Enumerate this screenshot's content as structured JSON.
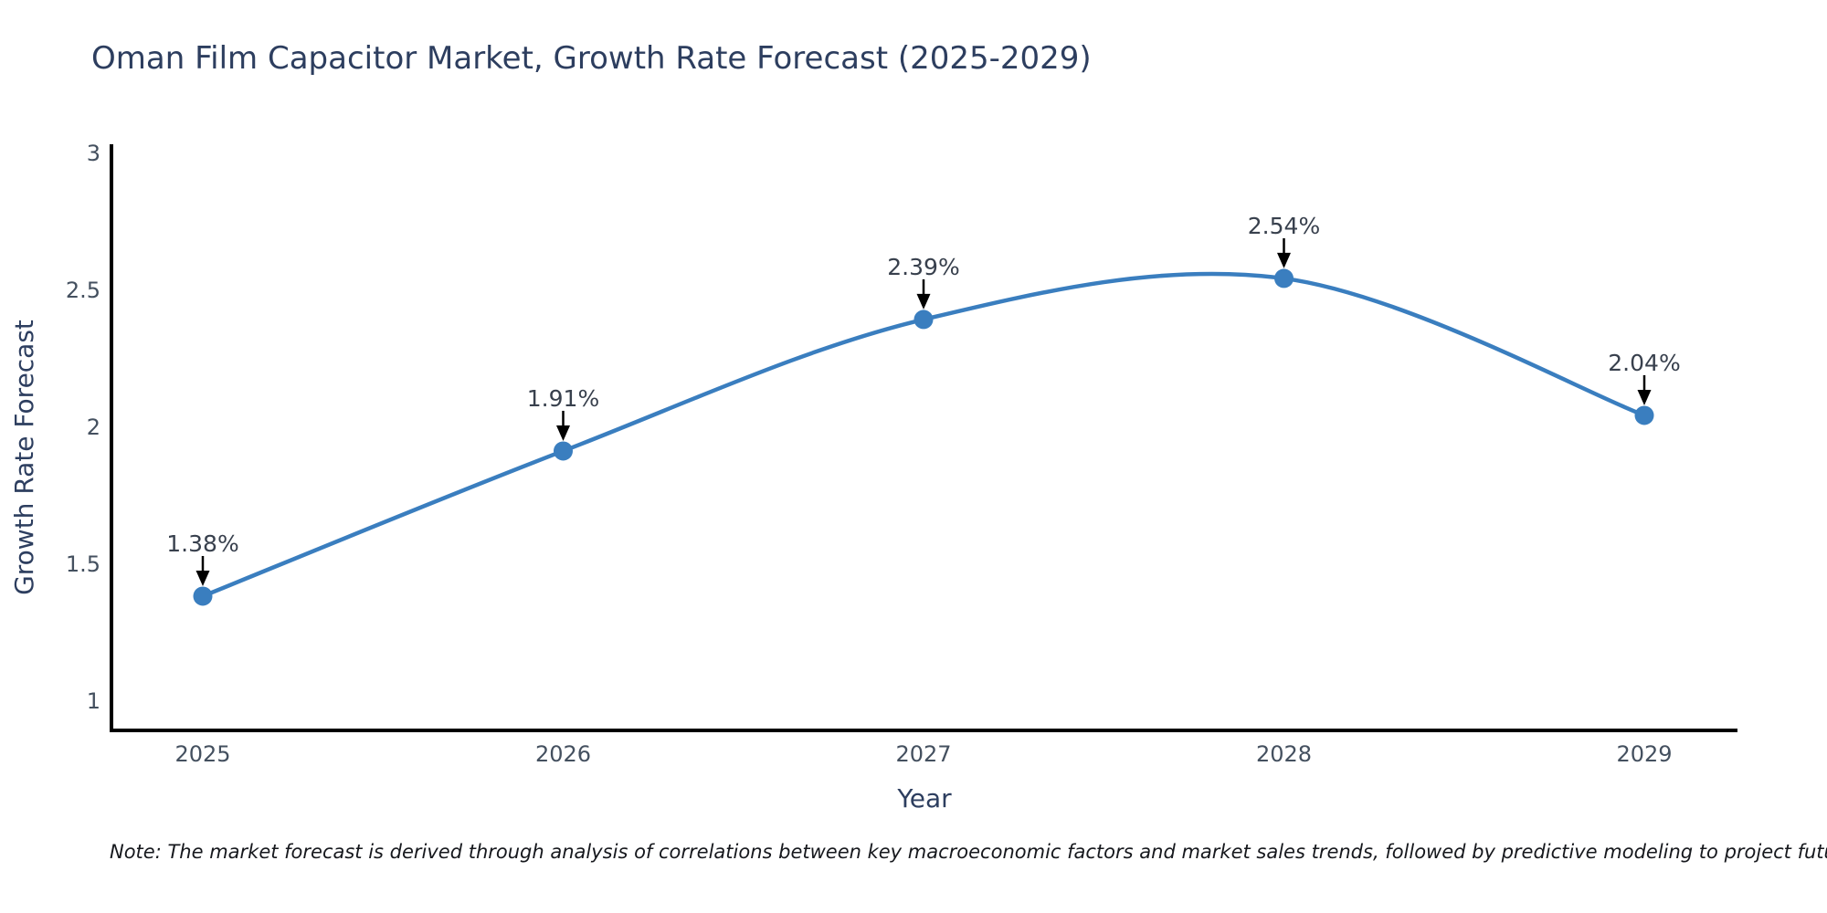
{
  "note": "Note: The market forecast is derived through analysis of correlations between key macroeconomic factors and market sales trends, followed by predictive modeling to project future sales",
  "chart_data": {
    "type": "line",
    "title": "Oman Film Capacitor Market, Growth Rate Forecast (2025-2029)",
    "xlabel": "Year",
    "ylabel": "Growth Rate Forecast",
    "categories": [
      "2025",
      "2026",
      "2027",
      "2028",
      "2029"
    ],
    "series": [
      {
        "name": "Growth Rate Forecast",
        "values": [
          1.38,
          1.91,
          2.39,
          2.54,
          2.04
        ],
        "point_labels": [
          "1.38%",
          "1.91%",
          "2.39%",
          "2.54%",
          "2.04%"
        ]
      }
    ],
    "yticks": {
      "values": [
        3,
        2.5,
        2,
        1.5,
        1
      ],
      "labels": [
        "3",
        "2.5",
        "2",
        "1.5",
        "1"
      ]
    },
    "ylim": [
      0.89,
      3.023
    ],
    "grid": false,
    "legend": false,
    "curve": "spline",
    "colors": {
      "line": "#3a7ebf",
      "marker": "#3a7ebf",
      "axis": "#000000",
      "arrow": "#000000",
      "tick_text": "#44505f",
      "annotation_text": "#38404d"
    }
  }
}
